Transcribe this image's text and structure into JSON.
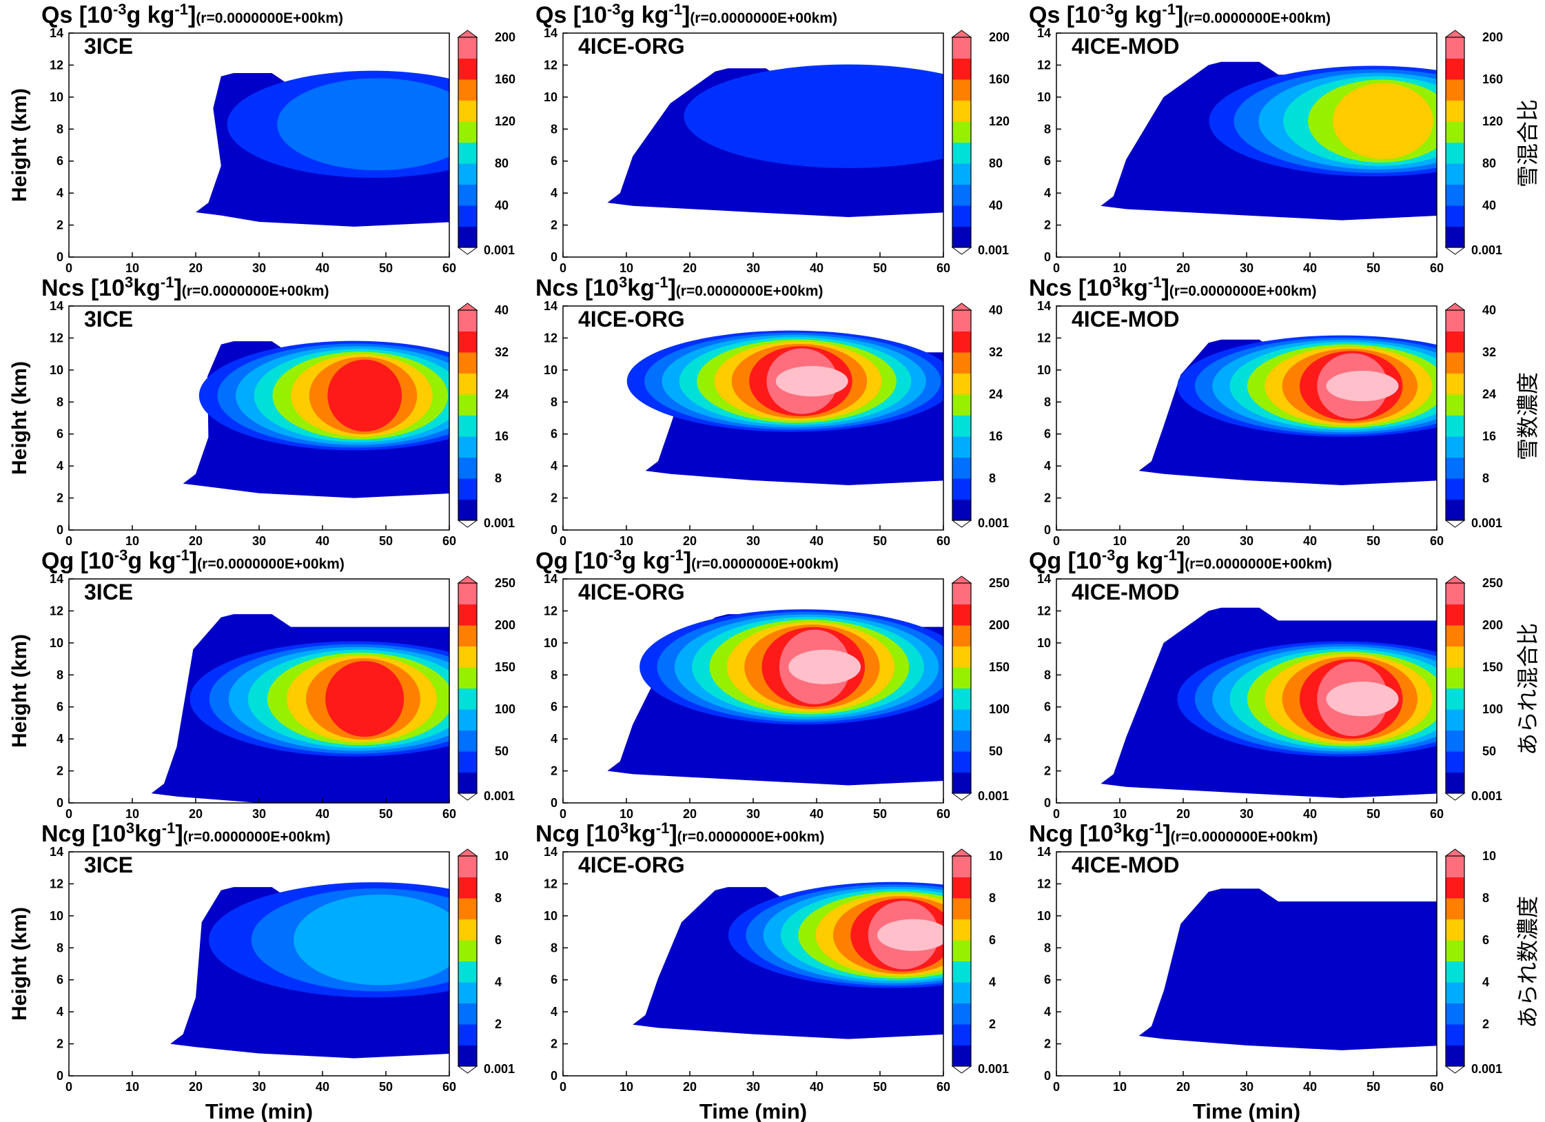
{
  "chart_data": {
    "type": "heatmap",
    "layout": "4 rows x 3 columns",
    "x_axis": {
      "label": "Time (min)",
      "range": [
        0,
        60
      ],
      "ticks": [
        "0",
        "10",
        "20",
        "30",
        "40",
        "50",
        "60"
      ]
    },
    "y_axis": {
      "label": "Height (km)",
      "range": [
        0,
        14
      ],
      "ticks": [
        "0",
        "2",
        "4",
        "6",
        "8",
        "10",
        "12",
        "14"
      ]
    },
    "model_labels": [
      "3ICE",
      "4ICE-ORG",
      "4ICE-MOD"
    ],
    "palette": [
      "#0000b8",
      "#0030ff",
      "#0070ff",
      "#00acff",
      "#00e0d8",
      "#96f000",
      "#ffcc00",
      "#ff8000",
      "#ff1a1a",
      "#ff6e7d"
    ],
    "background_fill": "#0000c8",
    "rows": [
      {
        "title_main": "Qs [10",
        "title_exp": "-3",
        "title_unit": "g kg",
        "title_unit_exp": "-1",
        "title_suffix": "]",
        "title_note": "(r=0.0000000E+00km)",
        "side_label": "雪混合比",
        "colorbar_ticks": [
          "200",
          "160",
          "120",
          "80",
          "40",
          "0.001"
        ],
        "vmax": 200,
        "panels": [
          {
            "label": "3ICE",
            "onset_min": 20,
            "echo_top_km": 11.5,
            "base_km": 2.2,
            "core": {
              "t": 48,
              "z": 8.3,
              "value": 45
            }
          },
          {
            "label": "4ICE-ORG",
            "onset_min": 7,
            "echo_top_km": 11.8,
            "base_km": 2.8,
            "core": {
              "t": 45,
              "z": 8.8,
              "value": 25
            }
          },
          {
            "label": "4ICE-MOD",
            "onset_min": 7,
            "echo_top_km": 12.2,
            "base_km": 2.6,
            "core": {
              "t": 50,
              "z": 8.5,
              "value": 125
            }
          }
        ]
      },
      {
        "title_main": "Ncs [10",
        "title_exp": "3",
        "title_unit": "kg",
        "title_unit_exp": "-1",
        "title_suffix": "]",
        "title_note": "(r=0.0000000E+00km)",
        "side_label": "雪数濃度",
        "colorbar_ticks": [
          "40",
          "32",
          "24",
          "16",
          "8",
          "0.001"
        ],
        "vmax": 40,
        "panels": [
          {
            "label": "3ICE",
            "onset_min": 18,
            "echo_top_km": 11.8,
            "base_km": 2.3,
            "core": {
              "t": 45,
              "z": 8.4,
              "value": 33
            }
          },
          {
            "label": "4ICE-ORG",
            "onset_min": 13,
            "echo_top_km": 11.9,
            "base_km": 3.1,
            "core": {
              "t": 36,
              "z": 9.3,
              "value": 40
            }
          },
          {
            "label": "4ICE-MOD",
            "onset_min": 13,
            "echo_top_km": 11.9,
            "base_km": 3.1,
            "core": {
              "t": 45,
              "z": 9.0,
              "value": 40
            }
          }
        ]
      },
      {
        "title_main": "Qg [10",
        "title_exp": "-3",
        "title_unit": "g kg",
        "title_unit_exp": "-1",
        "title_suffix": "]",
        "title_note": "(r=0.0000000E+00km)",
        "side_label": "あられ混合比",
        "colorbar_ticks": [
          "250",
          "200",
          "150",
          "100",
          "50",
          "0.001"
        ],
        "vmax": 250,
        "panels": [
          {
            "label": "3ICE",
            "onset_min": 13,
            "echo_top_km": 11.8,
            "base_km": 0.0,
            "core": {
              "t": 45,
              "z": 6.5,
              "value": 200
            }
          },
          {
            "label": "4ICE-ORG",
            "onset_min": 7,
            "echo_top_km": 11.8,
            "base_km": 1.4,
            "core": {
              "t": 38,
              "z": 8.5,
              "value": 240
            }
          },
          {
            "label": "4ICE-MOD",
            "onset_min": 7,
            "echo_top_km": 12.2,
            "base_km": 0.6,
            "core": {
              "t": 45,
              "z": 6.5,
              "value": 250
            }
          }
        ]
      },
      {
        "title_main": "Ncg [10",
        "title_exp": "3",
        "title_unit": "kg",
        "title_unit_exp": "-1",
        "title_suffix": "]",
        "title_note": "(r=0.0000000E+00km)",
        "side_label": "あられ数濃度",
        "colorbar_ticks": [
          "10",
          "8",
          "6",
          "4",
          "2",
          "0.001"
        ],
        "vmax": 10,
        "panels": [
          {
            "label": "3ICE",
            "onset_min": 16,
            "echo_top_km": 11.8,
            "base_km": 1.4,
            "core": {
              "t": 48,
              "z": 8.5,
              "value": 3
            }
          },
          {
            "label": "4ICE-ORG",
            "onset_min": 11,
            "echo_top_km": 11.8,
            "base_km": 2.6,
            "core": {
              "t": 52,
              "z": 8.8,
              "value": 10
            }
          },
          {
            "label": "4ICE-MOD",
            "onset_min": 13,
            "echo_top_km": 11.7,
            "base_km": 1.9,
            "core": {
              "t": 40,
              "z": 7.0,
              "value": 0.5
            }
          }
        ]
      }
    ]
  }
}
